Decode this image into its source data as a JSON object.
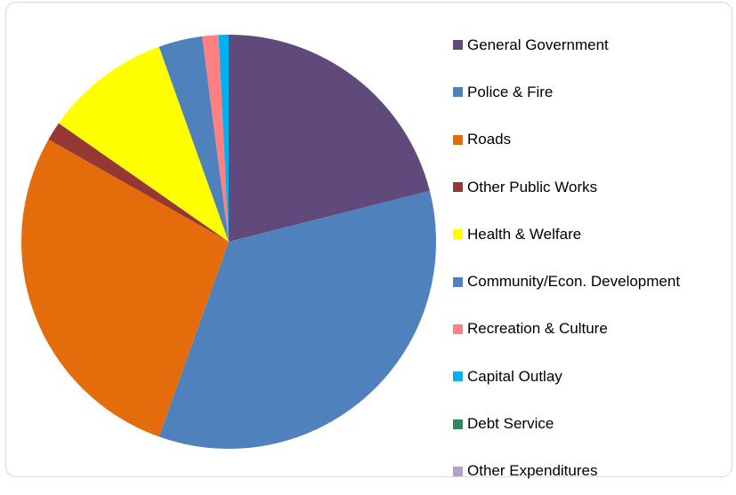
{
  "chart_data": {
    "type": "pie",
    "title": "",
    "categories": [
      "General Government",
      "Police & Fire",
      "Roads",
      "Other Public Works",
      "Health & Welfare",
      "Community/Econ. Development",
      "Recreation & Culture",
      "Capital Outlay",
      "Debt Service",
      "Other Expenditures"
    ],
    "values": [
      21.6,
      35.3,
      28.5,
      1.5,
      10.1,
      3.5,
      1.3,
      0.8,
      0.0,
      0.0
    ],
    "colors": [
      "#604A7B",
      "#4F81BD",
      "#E46C0A",
      "#953735",
      "#FFFF00",
      "#4F81BD",
      "#FF8080",
      "#00B0F0",
      "#2E8B57",
      "#B3A2C7"
    ],
    "start_angle_deg": 0,
    "direction": "clockwise",
    "legend_position": "right"
  }
}
